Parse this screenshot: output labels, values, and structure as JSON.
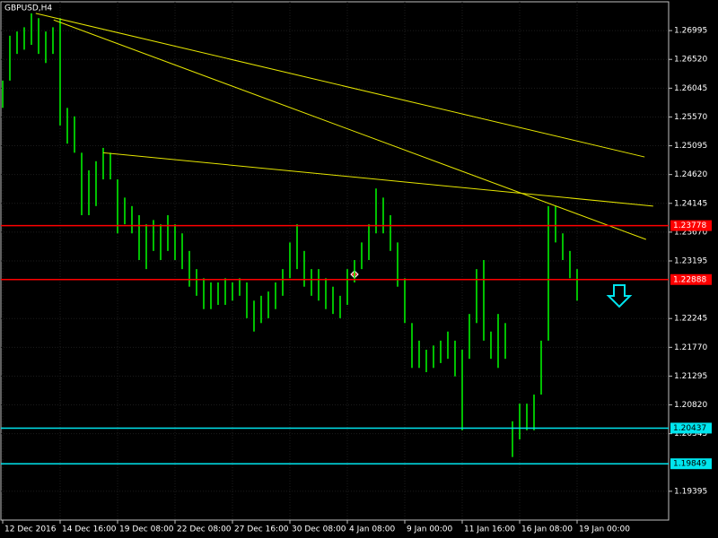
{
  "chart_data": {
    "type": "ohlc",
    "title": "GBPUSD,H4",
    "color": "#00ff00",
    "grid": true,
    "categories": [
      "12 Dec 2016",
      null,
      null,
      null,
      null,
      null,
      null,
      null,
      "14 Dec 16:00",
      null,
      null,
      null,
      null,
      null,
      null,
      null,
      "19 Dec 08:00",
      null,
      null,
      null,
      null,
      null,
      null,
      null,
      "22 Dec 08:00",
      null,
      null,
      null,
      null,
      null,
      null,
      null,
      "27 Dec 16:00",
      null,
      null,
      null,
      null,
      null,
      null,
      null,
      "30 Dec 08:00",
      null,
      null,
      null,
      null,
      null,
      null,
      null,
      "4 Jan 08:00",
      null,
      null,
      null,
      null,
      null,
      null,
      null,
      "9 Jan 00:00",
      null,
      null,
      null,
      null,
      null,
      null,
      null,
      "11 Jan 16:00",
      null,
      null,
      null,
      null,
      null,
      null,
      null,
      "16 Jan 08:00",
      null,
      null,
      null,
      null,
      null,
      null,
      null,
      "19 Jan 00:00"
    ],
    "high": [
      1.2617,
      1.2691,
      1.2698,
      1.2705,
      1.2728,
      1.272,
      1.2698,
      1.2705,
      1.272,
      1.2572,
      1.2558,
      1.2498,
      1.2469,
      1.2484,
      1.2506,
      1.2498,
      1.2454,
      1.2424,
      1.241,
      1.2395,
      1.238,
      1.2387,
      1.238,
      1.2395,
      1.238,
      1.2365,
      1.2336,
      1.2306,
      1.2291,
      1.2284,
      1.2284,
      1.2291,
      1.2284,
      1.2291,
      1.2284,
      1.2254,
      1.2262,
      1.2269,
      1.2284,
      1.2306,
      1.235,
      1.238,
      1.2336,
      1.2306,
      1.2306,
      1.2291,
      1.2277,
      1.2262,
      1.2306,
      1.2321,
      1.235,
      1.238,
      1.2439,
      1.2424,
      1.2395,
      1.235,
      1.2291,
      1.2217,
      1.2188,
      1.2173,
      1.218,
      1.2188,
      1.2203,
      1.2188,
      1.2173,
      1.2232,
      1.2306,
      1.2321,
      1.2203,
      1.2232,
      1.2217,
      1.2055,
      1.2084,
      1.2084,
      1.2099,
      1.2188,
      1.241,
      1.241,
      1.2365,
      1.2336,
      1.2306
    ],
    "low": [
      1.2572,
      1.2617,
      1.2661,
      1.2668,
      1.2676,
      1.2661,
      1.2646,
      1.2661,
      1.2543,
      1.2513,
      1.2498,
      1.2395,
      1.2395,
      1.241,
      1.2454,
      1.2454,
      1.2365,
      1.238,
      1.2365,
      1.2321,
      1.2306,
      1.2336,
      1.2321,
      1.2336,
      1.2321,
      1.2306,
      1.2277,
      1.2262,
      1.224,
      1.224,
      1.2247,
      1.2247,
      1.2254,
      1.2262,
      1.2225,
      1.2203,
      1.2217,
      1.2225,
      1.224,
      1.2262,
      1.2291,
      1.2306,
      1.2277,
      1.2262,
      1.2254,
      1.224,
      1.2232,
      1.2225,
      1.2247,
      1.2284,
      1.2306,
      1.2321,
      1.2365,
      1.2365,
      1.2336,
      1.2277,
      1.2217,
      1.2143,
      1.2143,
      1.2136,
      1.2143,
      1.2151,
      1.2158,
      1.2129,
      1.204,
      1.2158,
      1.2217,
      1.2188,
      1.2158,
      1.2143,
      1.2158,
      1.1996,
      1.2025,
      1.204,
      1.204,
      1.2099,
      1.2188,
      1.235,
      1.2321,
      1.2291,
      1.2254
    ],
    "xlim": [
      -0.25,
      92.75
    ],
    "ylim": [
      1.1892,
      1.2747
    ],
    "yticks": [
      1.26995,
      {
        "value": 1.2652,
        "label": "1.26520"
      },
      1.26045,
      {
        "value": 1.2557,
        "label": "1.25570"
      },
      1.25095,
      {
        "value": 1.2462,
        "label": "1.24620"
      },
      1.24145,
      {
        "value": 1.2367,
        "label": "1.23670"
      },
      1.23195,
      1.22245,
      {
        "value": 1.2177,
        "label": "1.21770"
      },
      1.21295,
      {
        "value": 1.2082,
        "label": "1.20820"
      },
      1.20345,
      1.19395
    ],
    "levels": [
      {
        "value": 1.23778,
        "color": "#ff0000"
      },
      {
        "value": 1.22888,
        "color": "#ff0000"
      },
      {
        "value": 1.20437,
        "color": "#00e5ee"
      },
      {
        "value": 1.19849,
        "color": "#00e5ee"
      }
    ],
    "trendline_color": "#e6e600",
    "trendlines": [
      {
        "x": [
          4.6,
          89.4
        ],
        "y": [
          1.2728,
          1.2491
        ]
      },
      {
        "x": [
          7.1,
          89.6
        ],
        "y": [
          1.2717,
          1.2355
        ]
      },
      {
        "x": [
          14,
          90.6
        ],
        "y": [
          1.2498,
          1.241
        ]
      }
    ]
  }
}
